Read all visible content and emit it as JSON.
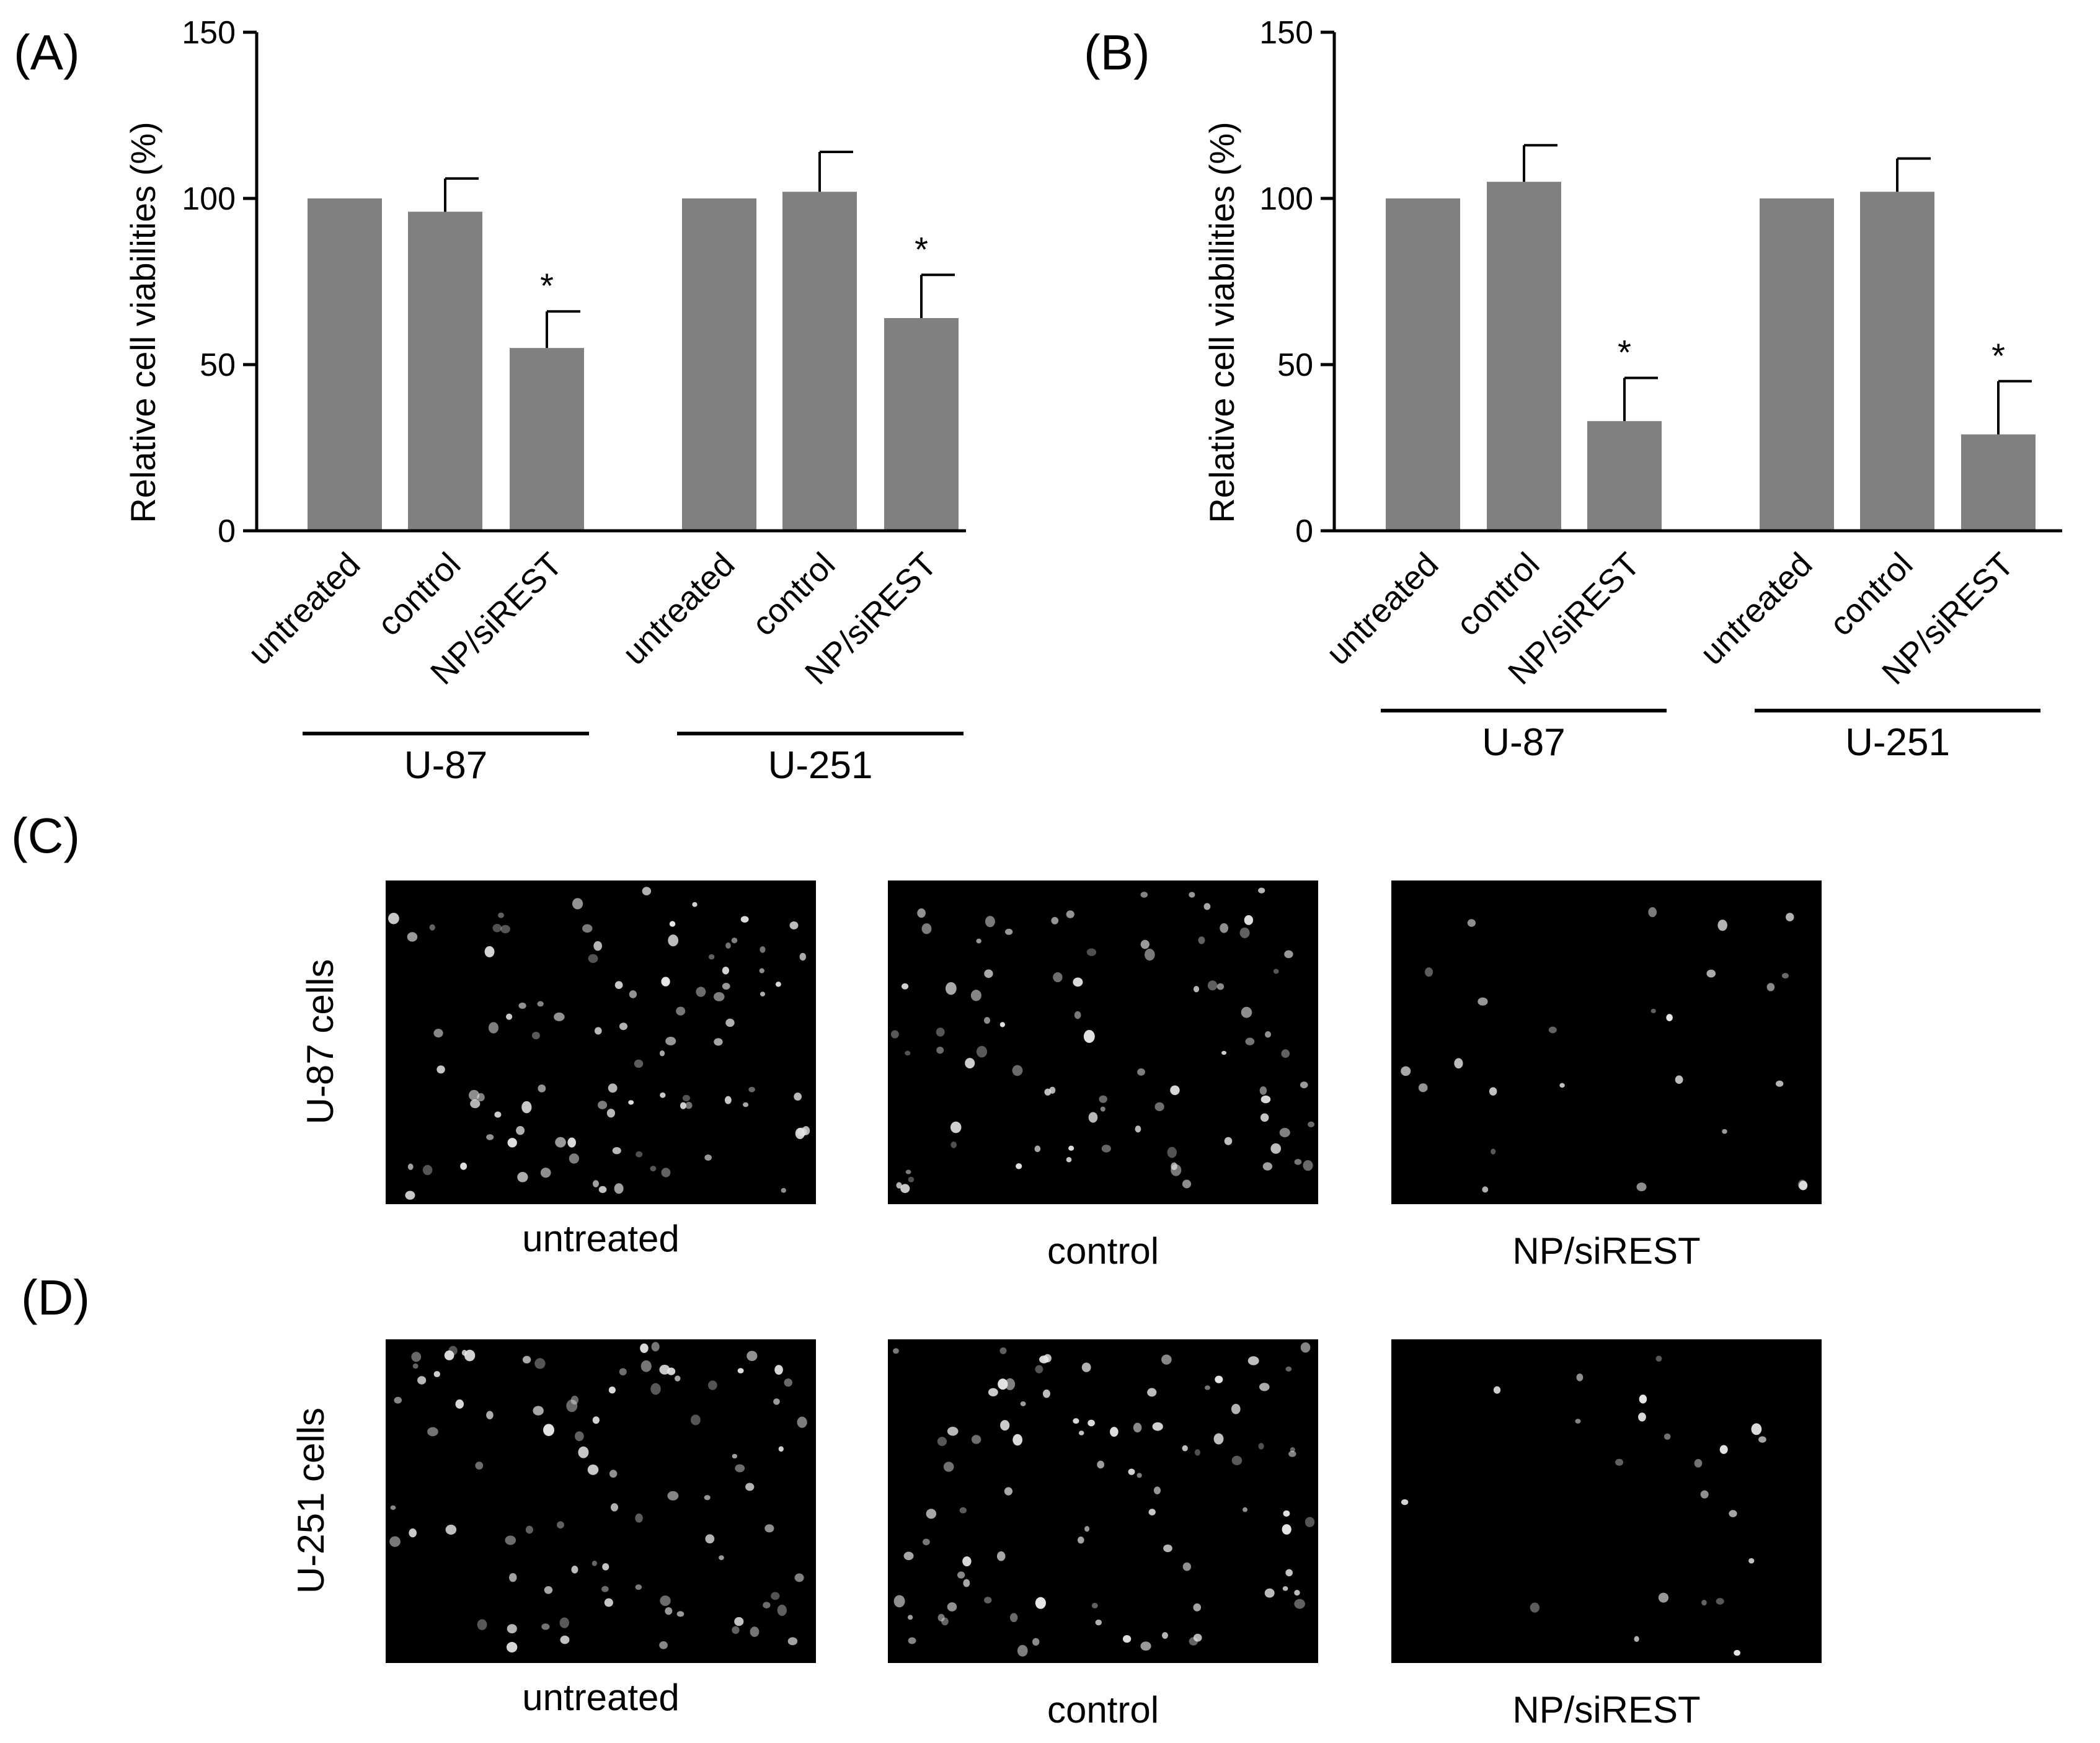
{
  "panels": {
    "A": "(A)",
    "B": "(B)",
    "C": "(C)",
    "D": "(D)"
  },
  "chart_data": [
    {
      "type": "bar",
      "panel": "(A)",
      "ylabel": "Relative cell viabilities (%)",
      "ylim": [
        0,
        150
      ],
      "yticks": [
        0,
        50,
        100,
        150
      ],
      "groups": [
        {
          "name": "U-87",
          "categories": [
            "untreated",
            "control",
            "NP/siREST"
          ],
          "values": [
            100,
            96,
            55
          ],
          "errors": [
            0,
            10,
            11
          ],
          "marks": [
            "",
            "",
            "*"
          ]
        },
        {
          "name": "U-251",
          "categories": [
            "untreated",
            "control",
            "NP/siREST"
          ],
          "values": [
            100,
            102,
            64
          ],
          "errors": [
            0,
            12,
            13
          ],
          "marks": [
            "",
            "",
            "*"
          ]
        }
      ]
    },
    {
      "type": "bar",
      "panel": "(B)",
      "ylabel": "Relative cell viabilities (%)",
      "ylim": [
        0,
        150
      ],
      "yticks": [
        0,
        50,
        100,
        150
      ],
      "groups": [
        {
          "name": "U-87",
          "categories": [
            "untreated",
            "control",
            "NP/siREST"
          ],
          "values": [
            100,
            105,
            33
          ],
          "errors": [
            0,
            11,
            13
          ],
          "marks": [
            "",
            "",
            "*"
          ]
        },
        {
          "name": "U-251",
          "categories": [
            "untreated",
            "control",
            "NP/siREST"
          ],
          "values": [
            100,
            102,
            29
          ],
          "errors": [
            0,
            10,
            16
          ],
          "marks": [
            "",
            "",
            "*"
          ]
        }
      ]
    }
  ],
  "images": {
    "rows": [
      {
        "panel": "(C)",
        "label": "U-87 cells",
        "captions": [
          "untreated",
          "control",
          "NP/siREST"
        ],
        "cell_density": [
          90,
          80,
          25
        ]
      },
      {
        "panel": "(D)",
        "label": "U-251 cells",
        "captions": [
          "untreated",
          "control",
          "NP/siREST"
        ],
        "cell_density": [
          85,
          85,
          22
        ]
      }
    ]
  },
  "colors": {
    "bar": "#808080",
    "axis": "#000000",
    "micrograph_bg": "#000000",
    "nucleus": "#e6e6e6"
  }
}
